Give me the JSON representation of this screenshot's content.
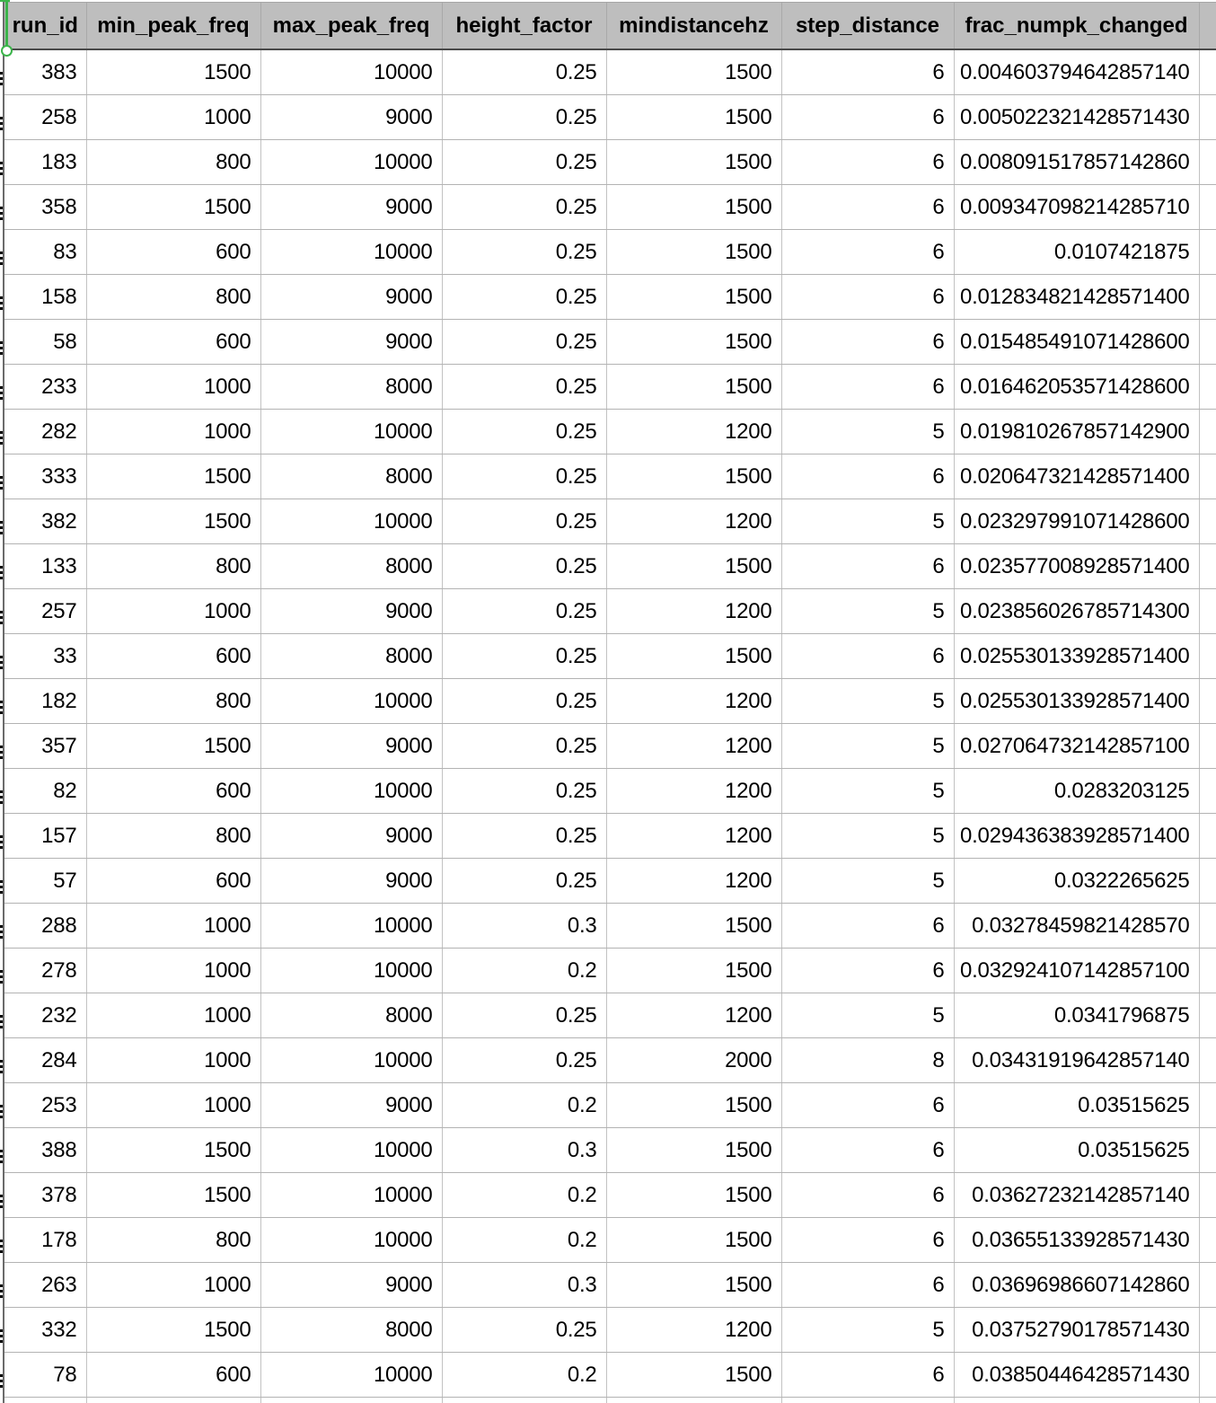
{
  "table": {
    "columns": [
      "run_id",
      "min_peak_freq",
      "max_peak_freq",
      "height_factor",
      "mindistancehz",
      "step_distance",
      "frac_numpk_changed"
    ],
    "rows": [
      [
        "383",
        "1500",
        "10000",
        "0.25",
        "1500",
        "6",
        "0.004603794642857140"
      ],
      [
        "258",
        "1000",
        "9000",
        "0.25",
        "1500",
        "6",
        "0.005022321428571430"
      ],
      [
        "183",
        "800",
        "10000",
        "0.25",
        "1500",
        "6",
        "0.008091517857142860"
      ],
      [
        "358",
        "1500",
        "9000",
        "0.25",
        "1500",
        "6",
        "0.009347098214285710"
      ],
      [
        "83",
        "600",
        "10000",
        "0.25",
        "1500",
        "6",
        "0.0107421875"
      ],
      [
        "158",
        "800",
        "9000",
        "0.25",
        "1500",
        "6",
        "0.012834821428571400"
      ],
      [
        "58",
        "600",
        "9000",
        "0.25",
        "1500",
        "6",
        "0.015485491071428600"
      ],
      [
        "233",
        "1000",
        "8000",
        "0.25",
        "1500",
        "6",
        "0.016462053571428600"
      ],
      [
        "282",
        "1000",
        "10000",
        "0.25",
        "1200",
        "5",
        "0.019810267857142900"
      ],
      [
        "333",
        "1500",
        "8000",
        "0.25",
        "1500",
        "6",
        "0.020647321428571400"
      ],
      [
        "382",
        "1500",
        "10000",
        "0.25",
        "1200",
        "5",
        "0.023297991071428600"
      ],
      [
        "133",
        "800",
        "8000",
        "0.25",
        "1500",
        "6",
        "0.023577008928571400"
      ],
      [
        "257",
        "1000",
        "9000",
        "0.25",
        "1200",
        "5",
        "0.023856026785714300"
      ],
      [
        "33",
        "600",
        "8000",
        "0.25",
        "1500",
        "6",
        "0.025530133928571400"
      ],
      [
        "182",
        "800",
        "10000",
        "0.25",
        "1200",
        "5",
        "0.025530133928571400"
      ],
      [
        "357",
        "1500",
        "9000",
        "0.25",
        "1200",
        "5",
        "0.027064732142857100"
      ],
      [
        "82",
        "600",
        "10000",
        "0.25",
        "1200",
        "5",
        "0.0283203125"
      ],
      [
        "157",
        "800",
        "9000",
        "0.25",
        "1200",
        "5",
        "0.029436383928571400"
      ],
      [
        "57",
        "600",
        "9000",
        "0.25",
        "1200",
        "5",
        "0.0322265625"
      ],
      [
        "288",
        "1000",
        "10000",
        "0.3",
        "1500",
        "6",
        "0.03278459821428570"
      ],
      [
        "278",
        "1000",
        "10000",
        "0.2",
        "1500",
        "6",
        "0.032924107142857100"
      ],
      [
        "232",
        "1000",
        "8000",
        "0.25",
        "1200",
        "5",
        "0.0341796875"
      ],
      [
        "284",
        "1000",
        "10000",
        "0.25",
        "2000",
        "8",
        "0.03431919642857140"
      ],
      [
        "253",
        "1000",
        "9000",
        "0.2",
        "1500",
        "6",
        "0.03515625"
      ],
      [
        "388",
        "1500",
        "10000",
        "0.3",
        "1500",
        "6",
        "0.03515625"
      ],
      [
        "378",
        "1500",
        "10000",
        "0.2",
        "1500",
        "6",
        "0.03627232142857140"
      ],
      [
        "178",
        "800",
        "10000",
        "0.2",
        "1500",
        "6",
        "0.03655133928571430"
      ],
      [
        "263",
        "1000",
        "9000",
        "0.3",
        "1500",
        "6",
        "0.03696986607142860"
      ],
      [
        "332",
        "1500",
        "8000",
        "0.25",
        "1200",
        "5",
        "0.03752790178571430"
      ],
      [
        "78",
        "600",
        "10000",
        "0.2",
        "1500",
        "6",
        "0.03850446428571430"
      ]
    ]
  },
  "selection": {
    "accent_color": "#3cb44b"
  }
}
